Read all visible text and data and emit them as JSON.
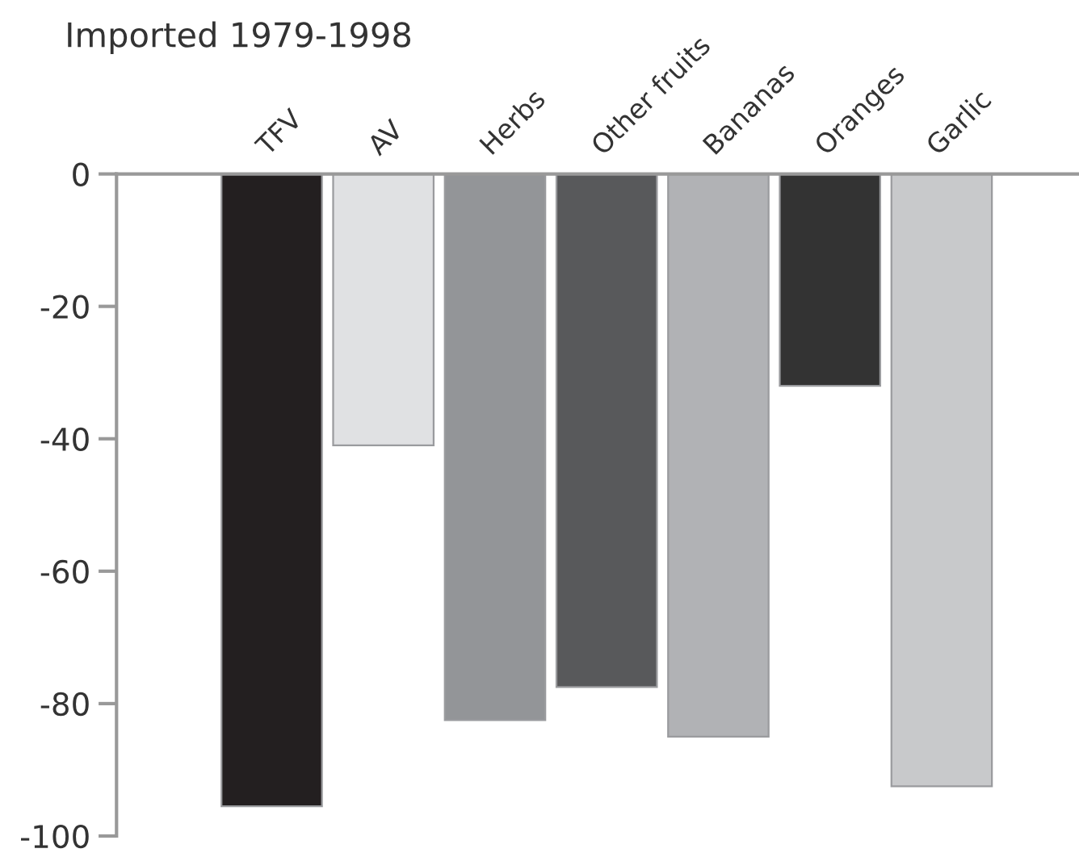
{
  "chart_data": {
    "type": "bar",
    "title": "Imported 1979-1998",
    "categories": [
      "TFV",
      "AV",
      "Herbs",
      "Other fruits",
      "Bananas",
      "Oranges",
      "Garlic"
    ],
    "values": [
      -95.5,
      -41,
      -82.5,
      -77.5,
      -85,
      -32,
      -92.5
    ],
    "colors": [
      "#231f20",
      "#e0e1e3",
      "#939598",
      "#58595b",
      "#b1b2b5",
      "#333333",
      "#c8c9cb"
    ],
    "ylim": [
      -100,
      0
    ],
    "yticks": [
      -100,
      -80,
      -60,
      -40,
      -20,
      0
    ],
    "grid": false
  }
}
